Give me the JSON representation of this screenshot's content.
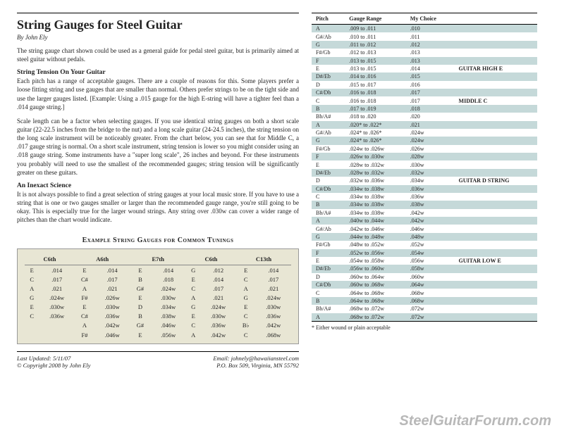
{
  "title": "String Gauges for Steel Guitar",
  "byline": "By John Ely",
  "intro": "The string gauge chart shown could be used as a general guide for pedal steel guitar, but is primarily aimed at steel guitar without pedals.",
  "sec1_head": "String Tension On Your Guitar",
  "sec1_p1": "Each pitch has a range of acceptable gauges. There are a couple of reasons for this. Some players prefer a loose fitting string and use gauges that are smaller than normal. Others prefer strings to be on the tight side and use the larger gauges listed. [Example: Using a .015 gauge for the high E-string will have a tighter feel than a .014 gauge string.]",
  "sec1_p2": "Scale length can be a factor when selecting gauges. If you use identical string gauges on both a short scale guitar (22-22.5 inches from the bridge to the nut) and a long scale guitar (24-24.5 inches), the string tension on the long scale instrument will be noticeably greater. From the chart below, you can see that for Middle C, a .017 gauge string is normal. On a short scale instrument, string tension is lower so you might consider using an .018 gauge string. Some instruments have a \"super long scale\", 26 inches and beyond. For these instruments you probably will need to use the smallest of the recommended gauges; string tension will be significantly greater on these guitars.",
  "sec2_head": "An Inexact Science",
  "sec2_p1": "It is not always possible to find a great selection of string gauges at your local music store. If you have to use a string that is one or two gauges smaller or larger than the recommended gauge range, you're still going to be okay. This is especially true for the larger wound strings. Any string over .030w can cover a wider range of pitches than the chart would indicate.",
  "tunings_title": "Example String Gauges for Common Tunings",
  "tunings": {
    "headers": [
      "C6th",
      "A6th",
      "E7th",
      "C6th",
      "C13th"
    ],
    "cols": [
      [
        [
          "E",
          ".014"
        ],
        [
          "C",
          ".017"
        ],
        [
          "A",
          ".021"
        ],
        [
          "G",
          ".024w"
        ],
        [
          "E",
          ".030w"
        ],
        [
          "C",
          ".036w"
        ],
        [
          "",
          ""
        ],
        [
          "",
          ""
        ]
      ],
      [
        [
          "E",
          ".014"
        ],
        [
          "C#",
          ".017"
        ],
        [
          "A",
          ".021"
        ],
        [
          "F#",
          ".026w"
        ],
        [
          "E",
          ".030w"
        ],
        [
          "C#",
          ".036w"
        ],
        [
          "A",
          ".042w"
        ],
        [
          "F#",
          ".046w"
        ]
      ],
      [
        [
          "E",
          ".014"
        ],
        [
          "B",
          ".018"
        ],
        [
          "G#",
          ".024w"
        ],
        [
          "E",
          ".030w"
        ],
        [
          "D",
          ".034w"
        ],
        [
          "B",
          ".038w"
        ],
        [
          "G#",
          ".046w"
        ],
        [
          "E",
          ".056w"
        ]
      ],
      [
        [
          "G",
          ".012"
        ],
        [
          "E",
          ".014"
        ],
        [
          "C",
          ".017"
        ],
        [
          "A",
          ".021"
        ],
        [
          "G",
          ".024w"
        ],
        [
          "E",
          ".030w"
        ],
        [
          "C",
          ".036w"
        ],
        [
          "A",
          ".042w"
        ]
      ],
      [
        [
          "E",
          ".014"
        ],
        [
          "C",
          ".017"
        ],
        [
          "A",
          ".021"
        ],
        [
          "G",
          ".024w"
        ],
        [
          "E",
          ".030w"
        ],
        [
          "C",
          ".036w"
        ],
        [
          "B♭",
          ".042w"
        ],
        [
          "C",
          ".068w"
        ]
      ]
    ]
  },
  "footer": {
    "updated": "Last Updated: 5/11/07",
    "copyright": "© Copyright 2008 by John Ely",
    "email": "Email: johnely@hawaiiansteel.com",
    "address": "P.O. Box 509, Virginia, MN 55792"
  },
  "gauge_headers": [
    "Pitch",
    "Gauge Range",
    "My Choice",
    ""
  ],
  "gauge_rows": [
    [
      "A",
      ".009 to .011",
      ".010",
      ""
    ],
    [
      "G#/Ab",
      ".010 to .011",
      ".011",
      ""
    ],
    [
      "G",
      ".011 to .012",
      ".012",
      ""
    ],
    [
      "F#/Gb",
      ".012 to .013",
      ".013",
      ""
    ],
    [
      "F",
      ".013 to .015",
      ".013",
      ""
    ],
    [
      "E",
      ".013 to .015",
      ".014",
      "GUITAR HIGH E"
    ],
    [
      "D#/Eb",
      ".014 to .016",
      ".015",
      ""
    ],
    [
      "D",
      ".015 to .017",
      ".016",
      ""
    ],
    [
      "C#/Db",
      ".016 to .018",
      ".017",
      ""
    ],
    [
      "C",
      ".016 to .018",
      ".017",
      "MIDDLE C"
    ],
    [
      "B",
      ".017 to .019",
      ".018",
      ""
    ],
    [
      "Bb/A#",
      ".018 to .020",
      ".020",
      ""
    ],
    [
      "A",
      ".020* to .022*",
      ".021",
      ""
    ],
    [
      "G#/Ab",
      ".024* to .026*",
      ".024w",
      ""
    ],
    [
      "G",
      ".024* to .026*",
      ".024w",
      ""
    ],
    [
      "F#/Gb",
      ".024w to .026w",
      ".026w",
      ""
    ],
    [
      "F",
      ".026w to .030w",
      ".028w",
      ""
    ],
    [
      "E",
      ".028w to .032w",
      ".030w",
      ""
    ],
    [
      "D#/Eb",
      ".028w to .032w",
      ".032w",
      ""
    ],
    [
      "D",
      ".032w to .036w",
      ".034w",
      "GUITAR D STRING"
    ],
    [
      "C#/Db",
      ".034w to .038w",
      ".036w",
      ""
    ],
    [
      "C",
      ".034w to .038w",
      ".036w",
      ""
    ],
    [
      "B",
      ".034w to .038w",
      ".038w",
      ""
    ],
    [
      "Bb/A#",
      ".034w to .038w",
      ".042w",
      ""
    ],
    [
      "A",
      ".040w to .044w",
      ".042w",
      ""
    ],
    [
      "G#/Ab",
      ".042w to .046w",
      ".046w",
      ""
    ],
    [
      "G",
      ".044w to .048w",
      ".048w",
      ""
    ],
    [
      "F#/Gb",
      ".048w to .052w",
      ".052w",
      ""
    ],
    [
      "F",
      ".052w to .056w",
      ".054w",
      ""
    ],
    [
      "E",
      ".054w to .058w",
      ".056w",
      "GUITAR LOW E"
    ],
    [
      "D#/Eb",
      ".056w to .060w",
      ".058w",
      ""
    ],
    [
      "D",
      ".060w to .064w",
      ".060w",
      ""
    ],
    [
      "C#/Db",
      ".060w to .068w",
      ".064w",
      ""
    ],
    [
      "C",
      ".064w to .068w",
      ".068w",
      ""
    ],
    [
      "B",
      ".064w to .068w",
      ".068w",
      ""
    ],
    [
      "Bb/A#",
      ".068w to .072w",
      ".072w",
      ""
    ],
    [
      "A",
      ".068w to .072w",
      ".072w",
      ""
    ]
  ],
  "footnote": "* Either wound or plain acceptable",
  "watermark": "SteelGuitarForum.com"
}
